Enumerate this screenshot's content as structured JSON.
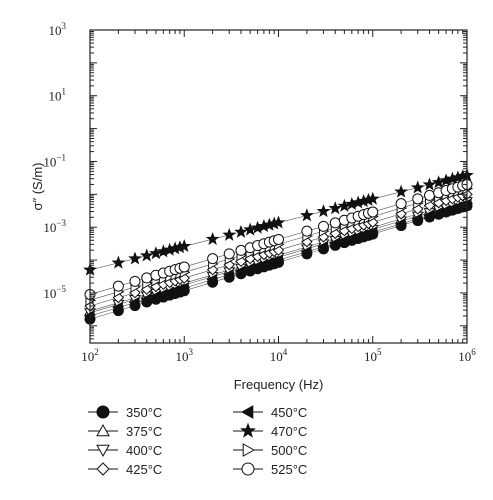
{
  "chart_data": {
    "type": "scatter",
    "xscale": "log",
    "yscale": "log",
    "xlim": [
      100,
      1000000
    ],
    "ylim": [
      3e-07,
      1000
    ],
    "xlabel": "Frequency (Hz)",
    "ylabel": "σ″ (S/m)",
    "xticks": [
      {
        "value": 100,
        "base": "10",
        "exp": "2"
      },
      {
        "value": 1000,
        "base": "10",
        "exp": "3"
      },
      {
        "value": 10000,
        "base": "10",
        "exp": "4"
      },
      {
        "value": 100000,
        "base": "10",
        "exp": "5"
      },
      {
        "value": 1000000,
        "base": "10",
        "exp": "6"
      }
    ],
    "yticks": [
      {
        "value": 1e-05,
        "base": "10",
        "exp": "−5"
      },
      {
        "value": 0.001,
        "base": "10",
        "exp": "−3"
      },
      {
        "value": 0.1,
        "base": "10",
        "exp": "−1"
      },
      {
        "value": 10,
        "base": "10",
        "exp": "1"
      },
      {
        "value": 1000,
        "base": "10",
        "exp": "3"
      }
    ],
    "x": [
      100,
      200,
      300,
      400,
      500,
      600,
      700,
      800,
      900,
      1000,
      2000,
      3000,
      4000,
      5000,
      6000,
      7000,
      8000,
      9000,
      10000,
      20000,
      30000,
      40000,
      50000,
      60000,
      70000,
      80000,
      90000,
      100000,
      200000,
      300000,
      400000,
      500000,
      600000,
      700000,
      800000,
      900000,
      1000000
    ],
    "series": [
      {
        "name": "350°C",
        "marker": "circle-filled",
        "y_start": 1.6e-06,
        "y_end": 0.0045
      },
      {
        "name": "375°C",
        "marker": "triangle-up-open",
        "y_start": 2.8e-06,
        "y_end": 0.007
      },
      {
        "name": "400°C",
        "marker": "triangle-down-open",
        "y_start": 2.5e-06,
        "y_end": 0.006
      },
      {
        "name": "425°C",
        "marker": "diamond-open",
        "y_start": 4e-06,
        "y_end": 0.01
      },
      {
        "name": "450°C",
        "marker": "triangle-left-filled",
        "y_start": 2e-06,
        "y_end": 0.005
      },
      {
        "name": "470°C",
        "marker": "star-filled",
        "y_start": 5e-05,
        "y_end": 0.038
      },
      {
        "name": "500°C",
        "marker": "triangle-right-open",
        "y_start": 6e-06,
        "y_end": 0.015
      },
      {
        "name": "525°C",
        "marker": "circle-open",
        "y_start": 9e-06,
        "y_end": 0.02
      }
    ]
  }
}
